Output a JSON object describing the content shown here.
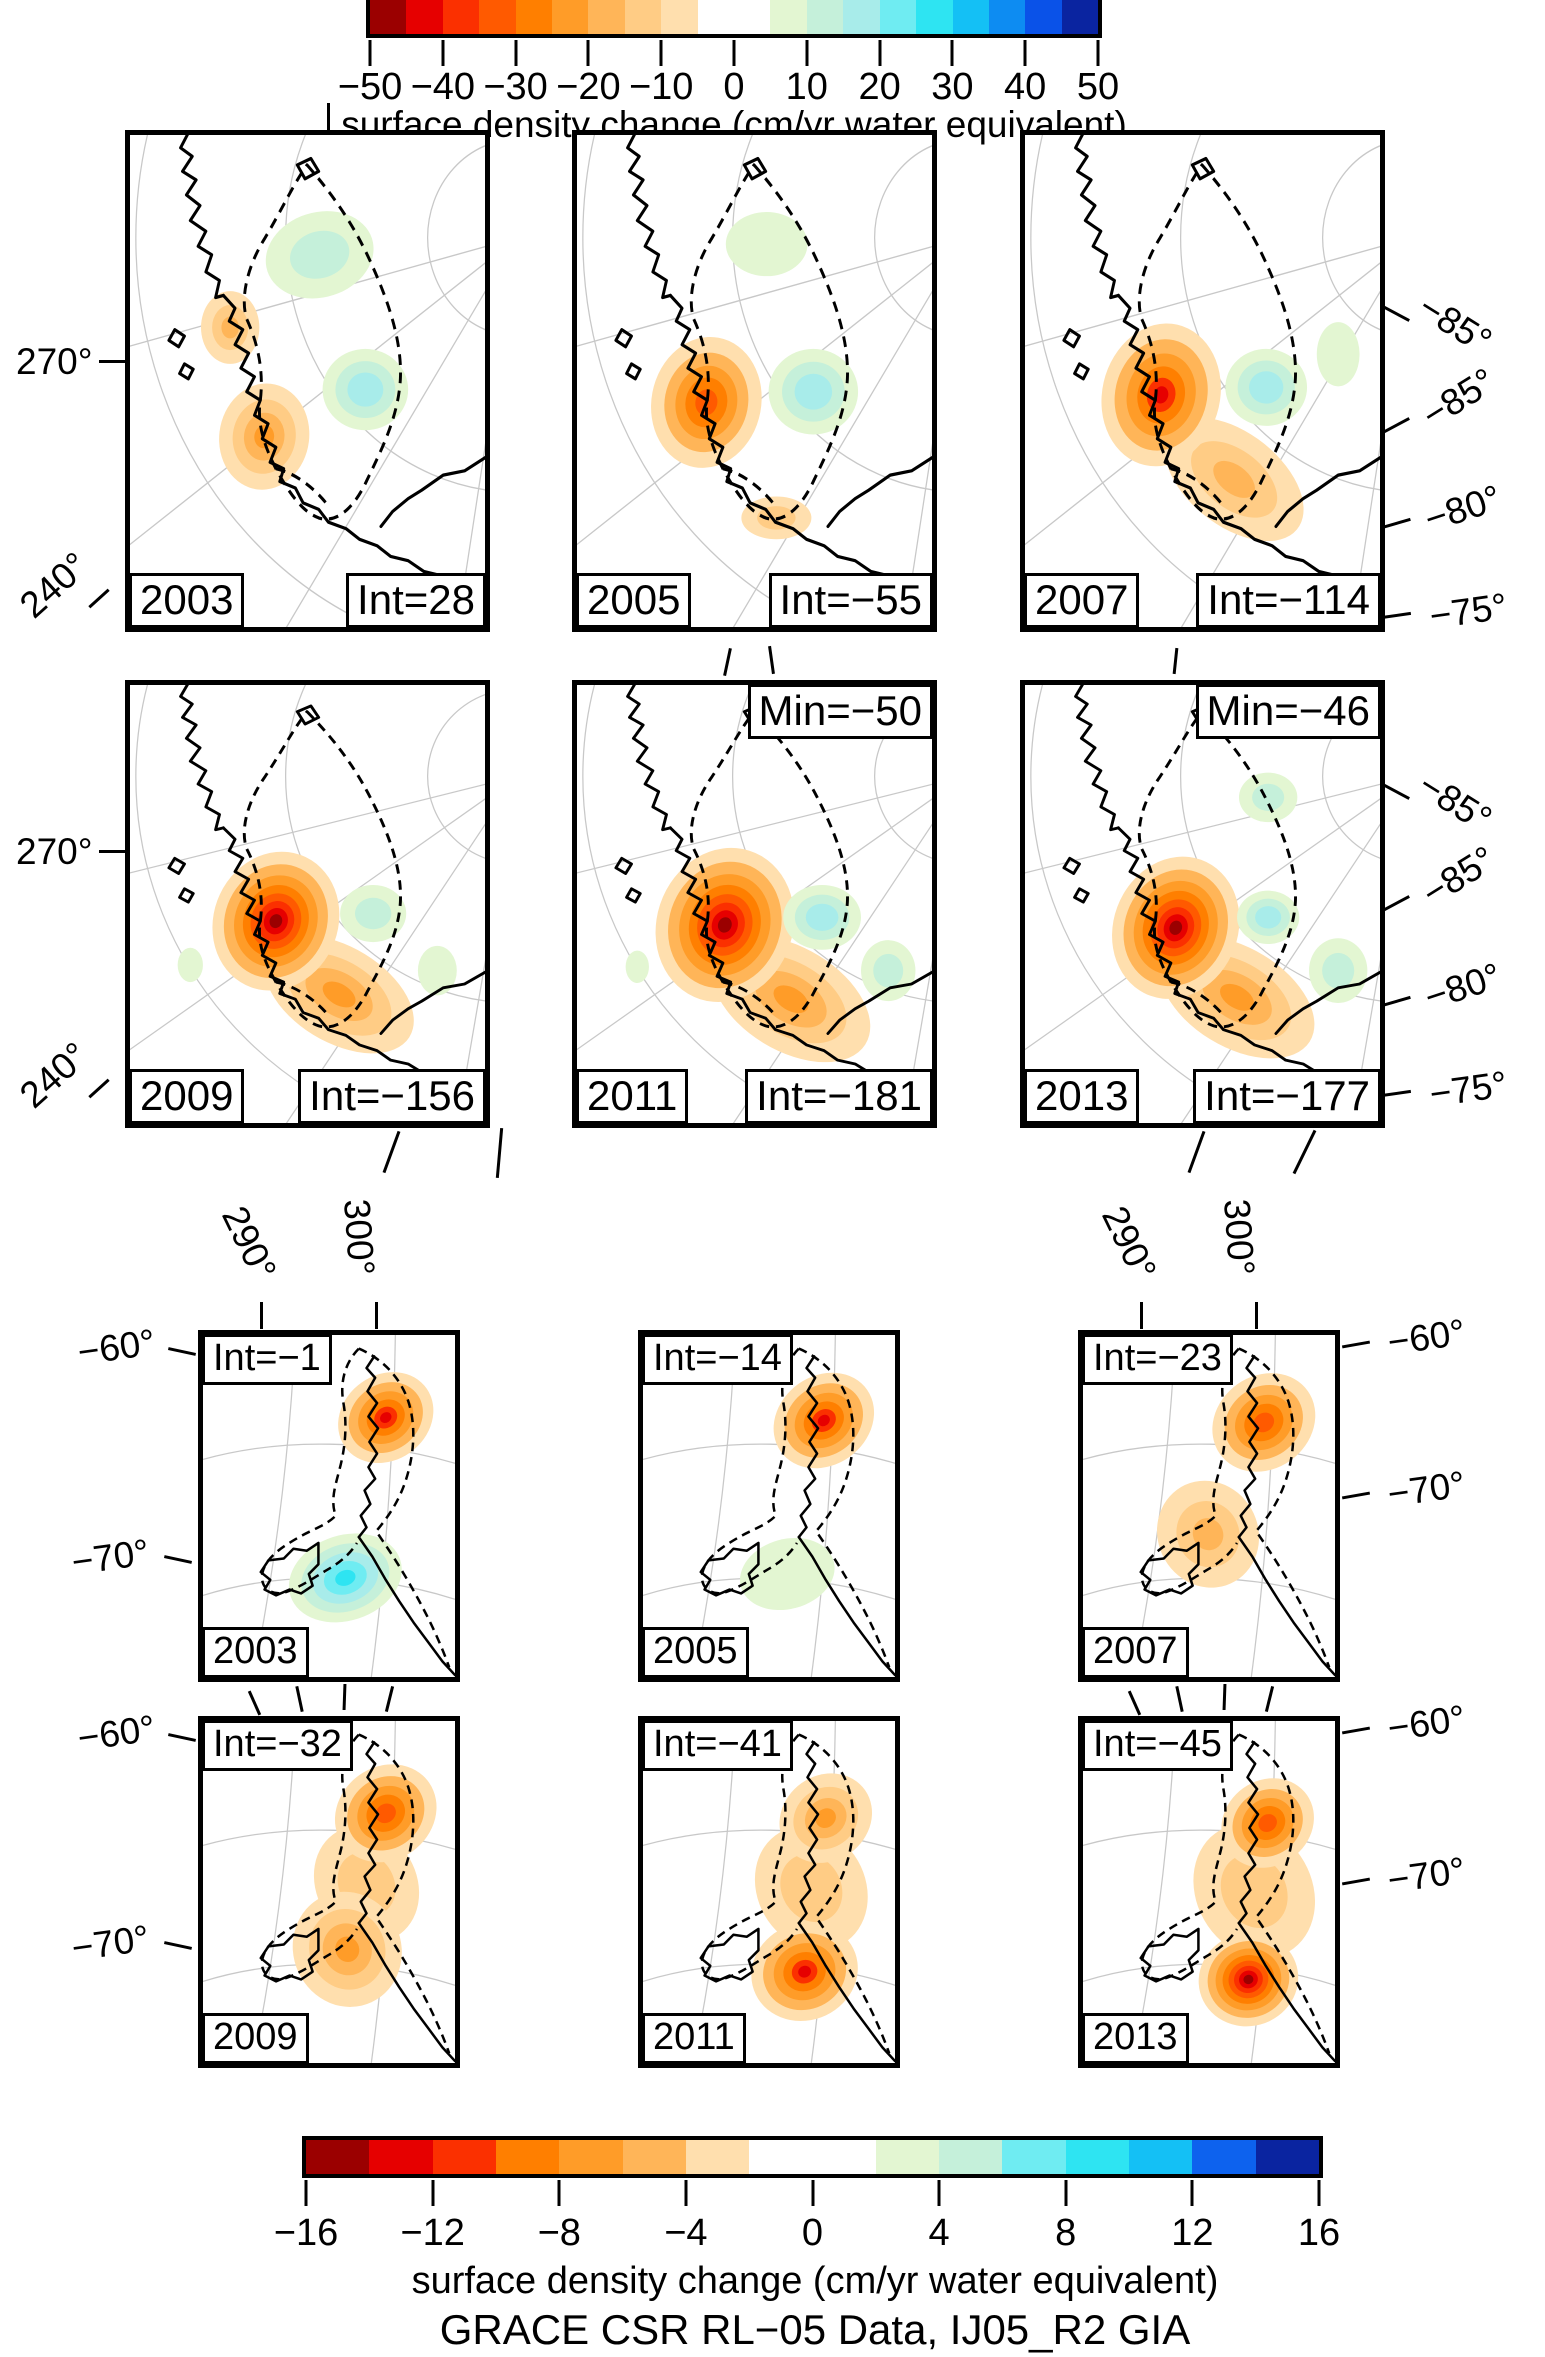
{
  "figure": {
    "caption": "GRACE CSR RL−05 Data, IJ05_R2 GIA"
  },
  "colorbar_top": {
    "title": "surface density change (cm/yr water equivalent)",
    "range": [
      -50,
      50
    ],
    "tick_labels": [
      "−50",
      "−40",
      "−30",
      "−20",
      "−10",
      "0",
      "10",
      "20",
      "30",
      "40",
      "50"
    ],
    "segment_colors": [
      "#9b0000",
      "#e60000",
      "#fb3000",
      "#ff5a00",
      "#ff7f00",
      "#ff9c28",
      "#ffb558",
      "#ffcc85",
      "#ffdfae",
      "#ffffff",
      "#ffffff",
      "#e3f6d2",
      "#c5f0da",
      "#a8ecea",
      "#6fecf2",
      "#2ee4f2",
      "#14c0f5",
      "#0d8cf2",
      "#0a52e8",
      "#0a24a0"
    ]
  },
  "colorbar_bottom": {
    "title": "surface density change (cm/yr water equivalent)",
    "range": [
      -16,
      16
    ],
    "tick_labels": [
      "−16",
      "−12",
      "−8",
      "−4",
      "0",
      "4",
      "8",
      "12",
      "16"
    ],
    "segment_colors": [
      "#9b0000",
      "#e60000",
      "#fb3000",
      "#ff7f00",
      "#ff9c28",
      "#ffb558",
      "#ffdfae",
      "#ffffff",
      "#ffffff",
      "#e3f6d2",
      "#c5f0da",
      "#6fecf2",
      "#2ee4f2",
      "#14c0f5",
      "#0d62ee",
      "#0a24a0"
    ]
  },
  "top_maps": {
    "axis": {
      "lon_270": "270°",
      "lon_240": "240°",
      "lat_85a": "−85°",
      "lat_85b": "−85°",
      "lat_80": "−80°",
      "lat_75": "−75°"
    },
    "panels": [
      {
        "year": "2003",
        "int_label": "Int=28"
      },
      {
        "year": "2005",
        "int_label": "Int=−55"
      },
      {
        "year": "2007",
        "int_label": "Int=−114"
      },
      {
        "year": "2009",
        "int_label": "Int=−156"
      },
      {
        "year": "2011",
        "int_label": "Int=−181",
        "min_label": "Min=−50"
      },
      {
        "year": "2013",
        "int_label": "Int=−177",
        "min_label": "Min=−46"
      }
    ]
  },
  "bottom_maps": {
    "axis": {
      "lon_290": "290°",
      "lon_300": "300°",
      "lat_60": "−60°",
      "lat_70": "−70°"
    },
    "panels": [
      {
        "year": "2003",
        "int_label": "Int=−1"
      },
      {
        "year": "2005",
        "int_label": "Int=−14"
      },
      {
        "year": "2007",
        "int_label": "Int=−23"
      },
      {
        "year": "2009",
        "int_label": "Int=−32"
      },
      {
        "year": "2011",
        "int_label": "Int=−41"
      },
      {
        "year": "2013",
        "int_label": "Int=−45"
      }
    ]
  }
}
